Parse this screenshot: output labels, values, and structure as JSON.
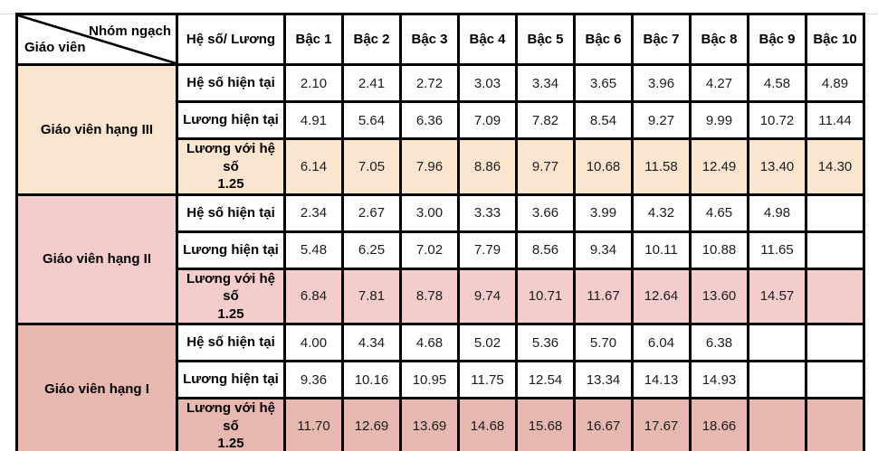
{
  "header": {
    "corner_top": "Nhóm ngạch",
    "corner_bottom": "Giáo viên",
    "col2": "Hệ số/ Lương",
    "bac_labels": [
      "Bậc 1",
      "Bậc 2",
      "Bậc 3",
      "Bậc 4",
      "Bậc 5",
      "Bậc 6",
      "Bậc 7",
      "Bậc 8",
      "Bậc 9",
      "Bậc 10"
    ]
  },
  "colors": {
    "border": "#000000",
    "group_iii": "#FBE5CE",
    "group_ii": "#F4CCCC",
    "group_i": "#E7B8B0",
    "gridline_remnant": "#D9D9D9"
  },
  "groups": [
    {
      "name": "Giáo viên hạng III",
      "color": "#FBE5CE",
      "rows": [
        {
          "label": "Hệ số hiện tại",
          "highlighted": false,
          "values": [
            "2.10",
            "2.41",
            "2.72",
            "3.03",
            "3.34",
            "3.65",
            "3.96",
            "4.27",
            "4.58",
            "4.89"
          ]
        },
        {
          "label": "Lương hiện tại",
          "highlighted": false,
          "values": [
            "4.91",
            "5.64",
            "6.36",
            "7.09",
            "7.82",
            "8.54",
            "9.27",
            "9.99",
            "10.72",
            "11.44"
          ]
        },
        {
          "label": "Lương với hệ số\n1.25",
          "highlighted": true,
          "values": [
            "6.14",
            "7.05",
            "7.96",
            "8.86",
            "9.77",
            "10.68",
            "11.58",
            "12.49",
            "13.40",
            "14.30"
          ]
        }
      ]
    },
    {
      "name": "Giáo viên hạng II",
      "color": "#F4CCCC",
      "rows": [
        {
          "label": "Hệ số hiện tại",
          "highlighted": false,
          "values": [
            "2.34",
            "2.67",
            "3.00",
            "3.33",
            "3.66",
            "3.99",
            "4.32",
            "4.65",
            "4.98",
            ""
          ]
        },
        {
          "label": "Lương hiện tại",
          "highlighted": false,
          "values": [
            "5.48",
            "6.25",
            "7.02",
            "7.79",
            "8.56",
            "9.34",
            "10.11",
            "10.88",
            "11.65",
            ""
          ]
        },
        {
          "label": "Lương với hệ số\n1.25",
          "highlighted": true,
          "values": [
            "6.84",
            "7.81",
            "8.78",
            "9.74",
            "10.71",
            "11.67",
            "12.64",
            "13.60",
            "14.57",
            ""
          ]
        }
      ]
    },
    {
      "name": "Giáo viên hạng I",
      "color": "#E7B8B0",
      "rows": [
        {
          "label": "Hệ số hiện tại",
          "highlighted": false,
          "values": [
            "4.00",
            "4.34",
            "4.68",
            "5.02",
            "5.36",
            "5.70",
            "6.04",
            "6.38",
            "",
            ""
          ]
        },
        {
          "label": "Lương hiện tại",
          "highlighted": false,
          "values": [
            "9.36",
            "10.16",
            "10.95",
            "11.75",
            "12.54",
            "13.34",
            "14.13",
            "14.93",
            "",
            ""
          ]
        },
        {
          "label": "Lương với hệ số\n1.25",
          "highlighted": true,
          "values": [
            "11.70",
            "12.69",
            "13.69",
            "14.68",
            "15.68",
            "16.67",
            "17.67",
            "18.66",
            "",
            ""
          ]
        }
      ]
    }
  ]
}
